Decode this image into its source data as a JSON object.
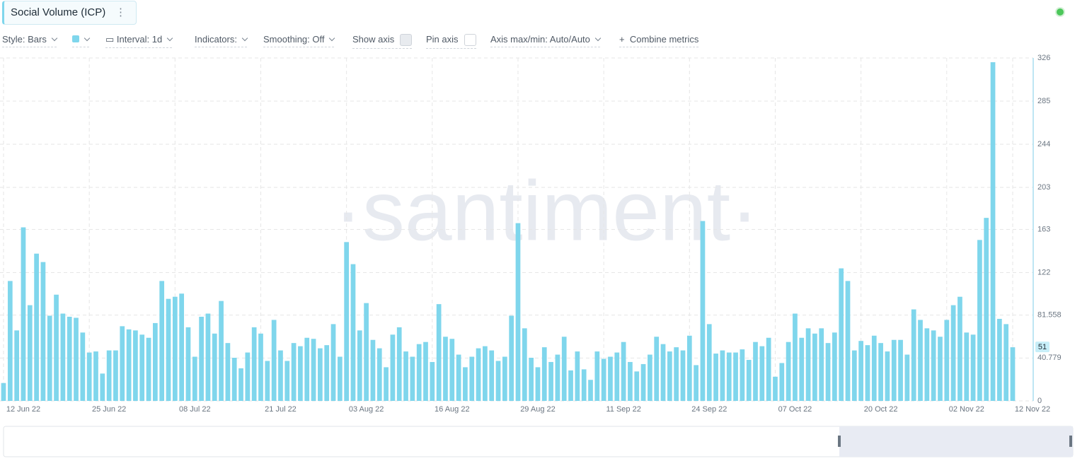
{
  "title": "Social Volume (ICP)",
  "toolbar": {
    "style": "Style: Bars",
    "interval": "Interval: 1d",
    "indicators": "Indicators:",
    "smoothing": "Smoothing: Off",
    "show_axis": "Show axis",
    "pin_axis": "Pin axis",
    "axis_range": "Axis max/min: Auto/Auto",
    "combine": "Combine metrics"
  },
  "chart_data": {
    "type": "bar",
    "watermark": "·santiment·",
    "color": "#7fd6ec",
    "grid": true,
    "categories": [
      "12 Jun 22",
      null,
      null,
      null,
      null,
      null,
      null,
      null,
      null,
      null,
      null,
      null,
      null,
      "25 Jun 22",
      null,
      null,
      null,
      null,
      null,
      null,
      null,
      null,
      null,
      null,
      null,
      null,
      "08 Jul 22",
      null,
      null,
      null,
      null,
      null,
      null,
      null,
      null,
      null,
      null,
      null,
      null,
      "21 Jul 22",
      null,
      null,
      null,
      null,
      null,
      null,
      null,
      null,
      null,
      null,
      null,
      null,
      "03 Aug 22",
      null,
      null,
      null,
      null,
      null,
      null,
      null,
      null,
      null,
      null,
      null,
      null,
      "16 Aug 22",
      null,
      null,
      null,
      null,
      null,
      null,
      null,
      null,
      null,
      null,
      null,
      null,
      "29 Aug 22",
      null,
      null,
      null,
      null,
      null,
      null,
      null,
      null,
      null,
      null,
      null,
      null,
      "11 Sep 22",
      null,
      null,
      null,
      null,
      null,
      null,
      null,
      null,
      null,
      null,
      null,
      null,
      "24 Sep 22",
      null,
      null,
      null,
      null,
      null,
      null,
      null,
      null,
      null,
      null,
      null,
      null,
      "07 Oct 22",
      null,
      null,
      null,
      null,
      null,
      null,
      null,
      null,
      null,
      null,
      null,
      null,
      "20 Oct 22",
      null,
      null,
      null,
      null,
      null,
      null,
      null,
      null,
      null,
      null,
      null,
      null,
      "02 Nov 22",
      null,
      null,
      null,
      null,
      null,
      null,
      null,
      null,
      null,
      "12 Nov 22"
    ],
    "values": [
      17,
      114,
      67,
      165,
      91,
      140,
      132,
      81,
      101,
      83,
      80,
      79,
      65,
      46,
      47,
      26,
      48,
      48,
      71,
      68,
      67,
      63,
      60,
      74,
      114,
      97,
      99,
      102,
      70,
      42,
      80,
      83,
      64,
      95,
      55,
      41,
      31,
      46,
      70,
      64,
      38,
      77,
      48,
      38,
      55,
      52,
      60,
      59,
      50,
      53,
      73,
      42,
      151,
      130,
      67,
      93,
      58,
      50,
      32,
      63,
      70,
      47,
      42,
      54,
      56,
      37,
      92,
      61,
      59,
      44,
      32,
      42,
      50,
      52,
      48,
      38,
      42,
      81,
      169,
      69,
      41,
      32,
      51,
      37,
      44,
      61,
      29,
      47,
      30,
      20,
      47,
      40,
      42,
      46,
      56,
      37,
      28,
      35,
      44,
      61,
      54,
      47,
      51,
      48,
      62,
      34,
      171,
      73,
      45,
      48,
      46,
      46,
      49,
      39,
      56,
      52,
      60,
      23,
      36,
      56,
      83,
      60,
      69,
      64,
      69,
      55,
      65,
      126,
      114,
      48,
      57,
      53,
      62,
      55,
      47,
      58,
      58,
      44,
      87,
      77,
      69,
      67,
      61,
      77,
      91,
      99,
      65,
      63,
      153,
      174,
      322,
      78,
      73,
      51
    ],
    "ylim": [
      0,
      326
    ],
    "yticks": [
      0,
      40.779,
      81.558,
      122,
      163,
      203,
      244,
      285,
      326
    ]
  }
}
